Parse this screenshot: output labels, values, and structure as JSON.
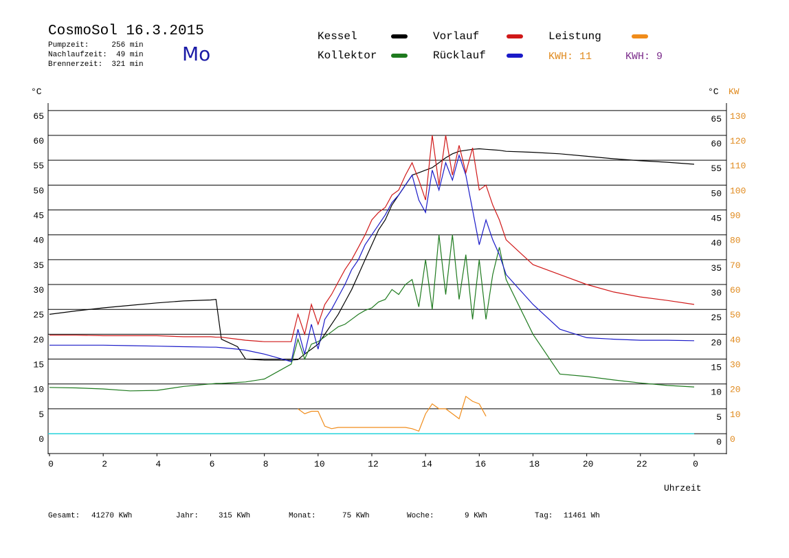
{
  "header": {
    "title": "CosmoSol 16.3.2015",
    "stats": [
      "Pumpzeit:     256 min",
      "Nachlaufzeit:  49 min",
      "Brennerzeit:  321 min"
    ],
    "weekday": "Mo",
    "kwh_orange": "KWH: 11",
    "kwh_purple": "KWH: 9"
  },
  "chart_data": {
    "type": "line",
    "ylabel": "°C",
    "y2label_unit": "°C",
    "y2label": "KW",
    "xlabel": "Uhrzeit",
    "xlim": [
      0,
      24
    ],
    "xticks": [
      0,
      2,
      4,
      6,
      8,
      10,
      12,
      14,
      16,
      18,
      20,
      22,
      {
        "value": 24,
        "label": "0"
      }
    ],
    "ylim": [
      -4,
      66
    ],
    "yticks": [
      0,
      5,
      10,
      15,
      20,
      25,
      30,
      35,
      40,
      45,
      50,
      55,
      60,
      65
    ],
    "y2lim": [
      -8,
      132
    ],
    "y2ticks": [
      0,
      10,
      20,
      30,
      40,
      50,
      60,
      70,
      80,
      90,
      100,
      110,
      120,
      130
    ],
    "grid": true,
    "x": [
      0,
      1,
      2,
      3,
      4,
      5,
      6,
      6.2,
      6.4,
      7,
      7.3,
      8,
      9,
      9.25,
      9.5,
      9.75,
      10,
      10.25,
      10.5,
      10.75,
      11,
      11.25,
      11.5,
      11.75,
      12,
      12.25,
      12.5,
      12.75,
      13,
      13.25,
      13.5,
      13.75,
      14,
      14.25,
      14.5,
      14.75,
      15,
      15.25,
      15.5,
      15.75,
      16,
      16.25,
      16.5,
      16.75,
      17,
      18,
      19,
      20,
      21,
      22,
      23,
      24
    ],
    "series": [
      {
        "name": "Kessel",
        "color": "#000000",
        "values": [
          24,
          24.7,
          25.3,
          25.8,
          26.3,
          26.7,
          26.9,
          27,
          19,
          17.5,
          15,
          14.8,
          14.8,
          14.9,
          16,
          17,
          18,
          20,
          22,
          24,
          26.5,
          29,
          32,
          35,
          38,
          41,
          43,
          46,
          48,
          50,
          52,
          52.5,
          53,
          53.5,
          54.5,
          55.5,
          56.3,
          56.8,
          57,
          57.2,
          57.3,
          57.2,
          57.1,
          57,
          56.8,
          56.6,
          56.3,
          55.8,
          55.3,
          54.9,
          54.6,
          54.2
        ]
      },
      {
        "name": "Kollektor",
        "color": "#1e7a1e",
        "values": [
          9.3,
          9.2,
          9,
          8.6,
          8.7,
          9.5,
          10,
          10.1,
          10.1,
          10.3,
          10.4,
          11,
          14,
          19,
          15,
          18,
          18.5,
          19.5,
          20.5,
          21.5,
          22,
          23,
          24,
          24.8,
          25.3,
          26.5,
          27,
          29,
          28,
          30,
          31,
          25.5,
          35,
          25,
          40,
          28,
          40,
          27,
          36,
          23,
          35,
          23,
          32,
          37.5,
          31,
          20,
          12,
          11.5,
          10.8,
          10.2,
          9.7,
          9.4
        ]
      },
      {
        "name": "Vorlauf",
        "color": "#d01818",
        "values": [
          19.8,
          19.8,
          19.7,
          19.7,
          19.7,
          19.5,
          19.5,
          19.4,
          19.4,
          19,
          18.8,
          18.5,
          18.5,
          24,
          20,
          26,
          22,
          26,
          28,
          30.5,
          33,
          35,
          37.5,
          40,
          43,
          44.5,
          45.5,
          48,
          49,
          52,
          54.5,
          51,
          47,
          60,
          50,
          60,
          52,
          58,
          52.5,
          57.5,
          49,
          50,
          46,
          43,
          39,
          34,
          32,
          30,
          28.5,
          27.5,
          26.8,
          26
        ]
      },
      {
        "name": "Rücklauf",
        "color": "#1a1ac8",
        "values": [
          17.8,
          17.8,
          17.8,
          17.7,
          17.6,
          17.5,
          17.4,
          17.4,
          17.3,
          17,
          16.8,
          16,
          14.5,
          21,
          16,
          22,
          17,
          23,
          25,
          27.5,
          30,
          33,
          35,
          38,
          40,
          42,
          44,
          46.5,
          48,
          50,
          52,
          47,
          44.5,
          53,
          49,
          54.5,
          51,
          56,
          52,
          45,
          38,
          43,
          39,
          36,
          32,
          26,
          21,
          19.3,
          19,
          18.8,
          18.8,
          18.7
        ]
      },
      {
        "name": "Leistung",
        "color": "#f08c1a",
        "axis": "y2",
        "values": [
          null,
          null,
          null,
          null,
          null,
          null,
          null,
          null,
          null,
          null,
          null,
          null,
          null,
          10,
          8,
          9,
          9,
          3,
          2,
          2.5,
          2.5,
          2.5,
          2.5,
          2.5,
          2.5,
          2.5,
          2.5,
          2.5,
          2.5,
          2.5,
          2,
          1,
          8,
          12,
          10,
          10,
          8,
          6,
          15,
          13,
          12,
          7,
          null,
          null,
          null,
          null,
          null,
          null,
          null,
          null,
          null,
          null
        ]
      }
    ]
  },
  "footer": [
    [
      "Gesamt:",
      "41270 KWh"
    ],
    [
      "Jahr:",
      "315 KWh"
    ],
    [
      "Monat:",
      "75 KWh"
    ],
    [
      "Woche:",
      "9 KWh"
    ],
    [
      "Tag:",
      "11461 Wh"
    ]
  ]
}
